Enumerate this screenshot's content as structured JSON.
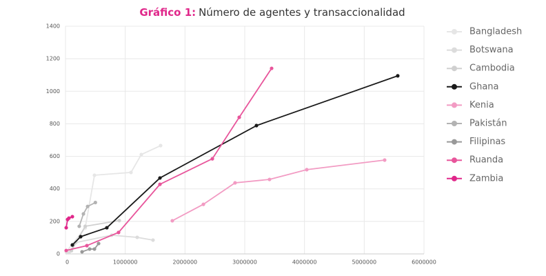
{
  "chart_data": {
    "type": "line",
    "title_label": "Gráfico 1:",
    "title": "Número de agentes y transaccionalidad",
    "xlim": [
      0,
      6000000
    ],
    "xticks": [
      0,
      1000000,
      2000000,
      3000000,
      4000000,
      5000000,
      6000000
    ],
    "ylim": [
      0,
      1400
    ],
    "yticks": [
      0,
      200,
      400,
      600,
      800,
      1000,
      1200,
      1400
    ],
    "grid": true,
    "legend": "right",
    "series": [
      {
        "name": "Bangladesh",
        "color": "#e6e6e6",
        "x": [
          12000,
          330000,
          485000,
          1096000,
          1269000,
          1592000
        ],
        "values": [
          13,
          160,
          484,
          501,
          611,
          666
        ]
      },
      {
        "name": "Botswana",
        "color": "#dcdcdc",
        "x": [
          58000,
          173000,
          773000,
          1200000,
          1465000
        ],
        "values": [
          8,
          70,
          115,
          102,
          85
        ]
      },
      {
        "name": "Cambodia",
        "color": "#d0d0d0",
        "x": [
          100000,
          330000,
          900000
        ],
        "values": [
          20,
          170,
          205
        ]
      },
      {
        "name": "Ghana",
        "color": "#1a1a1a",
        "x": [
          115000,
          254000,
          692000,
          1581000,
          3196000,
          5561000
        ],
        "values": [
          55,
          106,
          161,
          467,
          789,
          1095
        ]
      },
      {
        "name": "Kenia",
        "color": "#f29bc3",
        "x": [
          1788000,
          2308000,
          2838000,
          3415000,
          4038000,
          5342000
        ],
        "values": [
          204,
          305,
          437,
          458,
          518,
          577
        ]
      },
      {
        "name": "Pakistán",
        "color": "#b3b3b3",
        "x": [
          230000,
          300000,
          370000,
          500000
        ],
        "values": [
          170,
          246,
          292,
          316
        ]
      },
      {
        "name": "Filipinas",
        "color": "#999999",
        "x": [
          277000,
          404000,
          485000,
          554000
        ],
        "values": [
          13,
          30,
          30,
          64
        ]
      },
      {
        "name": "Ruanda",
        "color": "#e8559b",
        "x": [
          12000,
          358000,
          888000,
          1581000,
          2458000,
          2908000,
          3450000
        ],
        "values": [
          21,
          51,
          132,
          428,
          585,
          840,
          1141
        ]
      },
      {
        "name": "Zambia",
        "color": "#e0278a",
        "x": [
          12000,
          35000,
          58000,
          115000
        ],
        "values": [
          161,
          212,
          220,
          229
        ]
      }
    ]
  }
}
